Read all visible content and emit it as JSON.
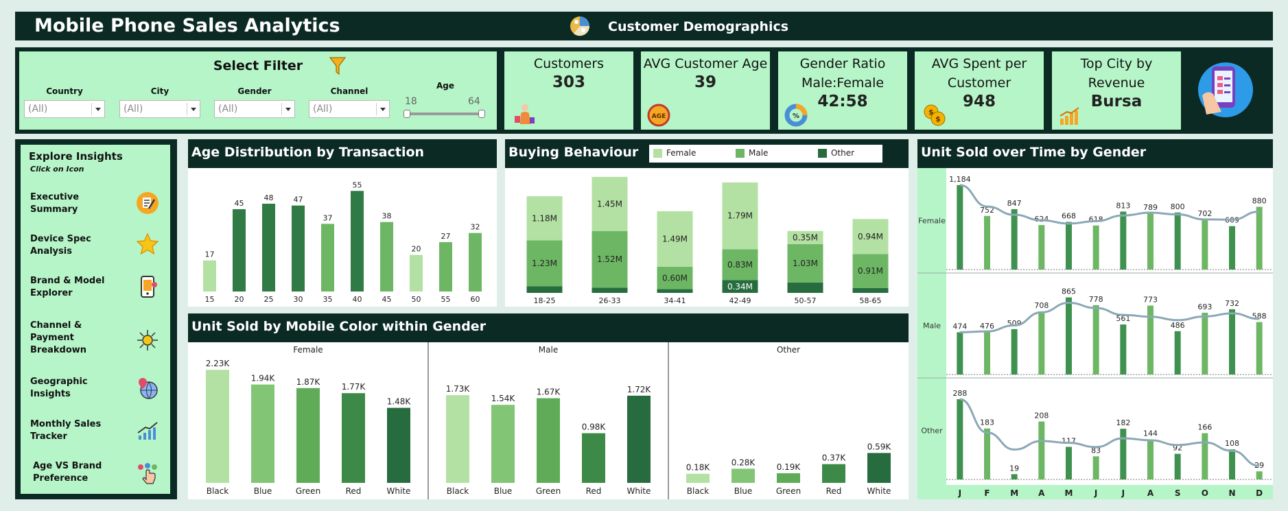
{
  "header": {
    "title": "Mobile Phone Sales Analytics",
    "subtitle": "Customer Demographics"
  },
  "filters": {
    "title": "Select Filter",
    "items": [
      {
        "label": "Country",
        "value": "(All)"
      },
      {
        "label": "City",
        "value": "(All)"
      },
      {
        "label": "Gender",
        "value": "(All)"
      },
      {
        "label": "Channel",
        "value": "(All)"
      }
    ],
    "age": {
      "label": "Age",
      "min": "18",
      "max": "64"
    }
  },
  "kpis": [
    {
      "title": "Customers",
      "value": "303"
    },
    {
      "title": "AVG Customer Age",
      "value": "39"
    },
    {
      "title": "Gender Ratio Male:Female",
      "value": "42:58"
    },
    {
      "title": "AVG Spent per Customer",
      "value": "948"
    },
    {
      "title": "Top City by Revenue",
      "value": "Bursa"
    }
  ],
  "sidebar": {
    "title": "Explore Insights",
    "hint": "Click on Icon",
    "items": [
      {
        "label": "Executive Summary",
        "icon": "summary-icon"
      },
      {
        "label": "Device Spec Analysis",
        "icon": "star-icon"
      },
      {
        "label": "Brand & Model Explorer",
        "icon": "phone-icon"
      },
      {
        "label": "Channel & Payment Breakdown",
        "icon": "network-icon"
      },
      {
        "label": "Geographic Insights",
        "icon": "globe-pin-icon"
      },
      {
        "label": "Monthly Sales Tracker",
        "icon": "growth-chart-icon"
      },
      {
        "label": "Age VS Brand Preference",
        "icon": "pointer-icon"
      }
    ]
  },
  "colors": {
    "dark": "#0b2a23",
    "mint": "#b6f5c8",
    "female": "#b3e0a3",
    "male": "#6db764",
    "other": "#276c3f"
  },
  "chart_data": [
    {
      "id": "age",
      "type": "bar",
      "title": "Age Distribution by Transaction",
      "categories": [
        "15",
        "20",
        "25",
        "30",
        "35",
        "40",
        "45",
        "50",
        "55",
        "60"
      ],
      "values": [
        17,
        45,
        48,
        47,
        37,
        55,
        38,
        20,
        27,
        32
      ],
      "value_labels": [
        "17",
        "45",
        "48",
        "47",
        "37",
        "55",
        "38",
        "20",
        "27",
        "32"
      ],
      "ylim": [
        0,
        60
      ]
    },
    {
      "id": "buying",
      "type": "bar",
      "stacked": true,
      "title": "Buying Behaviour",
      "legend_position": "top",
      "categories": [
        "18-25",
        "26-33",
        "34-41",
        "42-49",
        "50-57",
        "58-65"
      ],
      "series": [
        {
          "name": "Other",
          "values": [
            0.18,
            0.14,
            0.1,
            0.34,
            0.28,
            0.13
          ],
          "labels": [
            "",
            "",
            "",
            "0.34M",
            "",
            ""
          ]
        },
        {
          "name": "Male",
          "values": [
            1.23,
            1.52,
            0.6,
            0.83,
            1.03,
            0.91
          ],
          "labels": [
            "1.23M",
            "1.52M",
            "0.60M",
            "0.83M",
            "1.03M",
            "0.91M"
          ]
        },
        {
          "name": "Female",
          "values": [
            1.18,
            1.45,
            1.49,
            1.79,
            0.35,
            0.94
          ],
          "labels": [
            "1.18M",
            "1.45M",
            "1.49M",
            "1.79M",
            "0.35M",
            "0.94M"
          ]
        }
      ],
      "ylim": [
        0,
        3.2
      ]
    },
    {
      "id": "color",
      "type": "bar",
      "title": "Unit Sold by Mobile Color within Gender",
      "categories": [
        "Black",
        "Blue",
        "Green",
        "Red",
        "White"
      ],
      "colors": [
        "#b3e0a3",
        "#82c575",
        "#5fab58",
        "#3d8a48",
        "#276c3f"
      ],
      "panels": [
        {
          "name": "Female",
          "values": [
            2.23,
            1.94,
            1.87,
            1.77,
            1.48
          ],
          "labels": [
            "2.23K",
            "1.94K",
            "1.87K",
            "1.77K",
            "1.48K"
          ]
        },
        {
          "name": "Male",
          "values": [
            1.73,
            1.54,
            1.67,
            0.98,
            1.72
          ],
          "labels": [
            "1.73K",
            "1.54K",
            "1.67K",
            "0.98K",
            "1.72K"
          ]
        },
        {
          "name": "Other",
          "values": [
            0.18,
            0.28,
            0.19,
            0.37,
            0.59
          ],
          "labels": [
            "0.18K",
            "0.28K",
            "0.19K",
            "0.37K",
            "0.59K"
          ]
        }
      ],
      "ylim": [
        0,
        2.3
      ]
    },
    {
      "id": "time",
      "type": "bar",
      "title": "Unit Sold over Time by Gender",
      "categories": [
        "J",
        "F",
        "M",
        "A",
        "M",
        "J",
        "J",
        "A",
        "S",
        "O",
        "N",
        "D"
      ],
      "trend_line": true,
      "panels": [
        {
          "name": "Female",
          "values": [
            1184,
            752,
            847,
            624,
            668,
            618,
            813,
            789,
            800,
            702,
            609,
            880
          ],
          "labels": [
            "1,184",
            "752",
            "847",
            "624",
            "668",
            "618",
            "813",
            "789",
            "800",
            "702",
            "609",
            "880"
          ],
          "ymax": 1250
        },
        {
          "name": "Male",
          "values": [
            474,
            476,
            509,
            708,
            865,
            778,
            561,
            773,
            486,
            693,
            732,
            588
          ],
          "labels": [
            "474",
            "476",
            "509",
            "708",
            "865",
            "778",
            "561",
            "773",
            "486",
            "693",
            "732",
            "588"
          ],
          "ymax": 1000
        },
        {
          "name": "Other",
          "values": [
            288,
            183,
            19,
            208,
            117,
            83,
            182,
            144,
            92,
            166,
            108,
            29
          ],
          "labels": [
            "288",
            "183",
            "19",
            "208",
            "117",
            "83",
            "182",
            "144",
            "92",
            "166",
            "108",
            "29"
          ],
          "ymax": 320
        }
      ]
    }
  ]
}
